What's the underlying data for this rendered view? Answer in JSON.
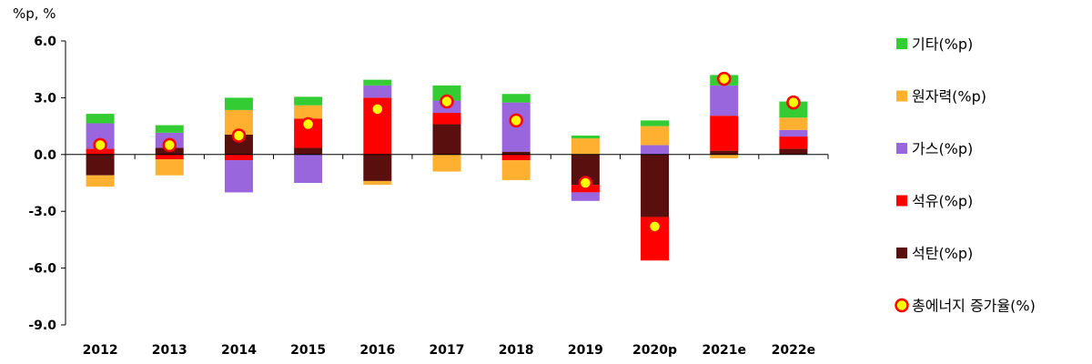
{
  "chart_data": {
    "type": "bar",
    "stacked": true,
    "unit_label": "%p, %",
    "categories": [
      "2012",
      "2013",
      "2014",
      "2015",
      "2016",
      "2017",
      "2018",
      "2019",
      "2020p",
      "2021e",
      "2022e"
    ],
    "ylim": [
      -9.0,
      6.0
    ],
    "yticks": [
      "6.0",
      "3.0",
      "0.0",
      "-3.0",
      "-6.0",
      "-9.0"
    ],
    "series": [
      {
        "name": "석탄(%p)",
        "color": "#5A0F0F",
        "values": [
          -1.1,
          0.35,
          1.05,
          0.35,
          -1.4,
          1.6,
          0.15,
          -1.6,
          -3.3,
          0.2,
          0.3
        ]
      },
      {
        "name": "석유(%p)",
        "color": "#FF0000",
        "values": [
          0.3,
          -0.25,
          -0.3,
          1.55,
          3.0,
          0.6,
          -0.3,
          -0.4,
          -2.3,
          1.85,
          0.65
        ]
      },
      {
        "name": "가스(%p)",
        "color": "#9966DD",
        "values": [
          1.35,
          0.8,
          -1.7,
          -1.5,
          0.65,
          0.65,
          2.6,
          -0.45,
          0.5,
          1.6,
          0.35
        ]
      },
      {
        "name": "원자력(%p)",
        "color": "#FFB030",
        "values": [
          -0.6,
          -0.85,
          1.3,
          0.7,
          -0.2,
          -0.9,
          -1.05,
          0.85,
          1.0,
          -0.2,
          0.65
        ]
      },
      {
        "name": "기타(%p)",
        "color": "#33CC33",
        "values": [
          0.5,
          0.4,
          0.65,
          0.45,
          0.3,
          0.8,
          0.45,
          0.15,
          0.3,
          0.55,
          0.85
        ]
      }
    ],
    "line_series": {
      "name": "총에너지 증가율(%)",
      "marker_fill": "#FFFF00",
      "marker_stroke": "#FF0000",
      "values": [
        0.5,
        0.5,
        1.0,
        1.6,
        2.4,
        2.8,
        1.8,
        -1.5,
        -3.8,
        4.0,
        2.75
      ]
    },
    "legend_order": [
      "기타(%p)",
      "원자력(%p)",
      "가스(%p)",
      "석유(%p)",
      "석탄(%p)",
      "총에너지 증가율(%)"
    ],
    "legend_position": "right",
    "grid": false
  }
}
